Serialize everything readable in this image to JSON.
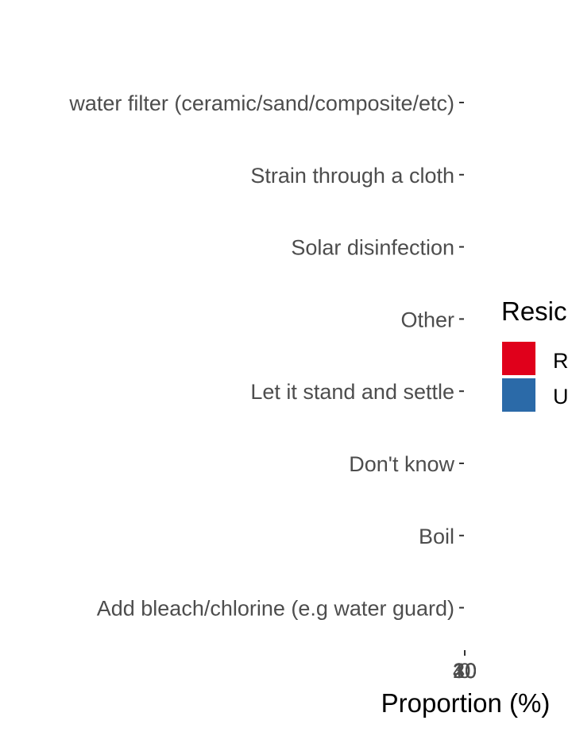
{
  "chart_data": {
    "type": "bar",
    "orientation": "horizontal",
    "categories": [
      "water filter (ceramic/sand/composite/etc)",
      "Strain through a cloth",
      "Solar disinfection",
      "Other",
      "Let it stand and settle",
      "Don't know",
      "Boil",
      "Add bleach/chlorine (e.g water guard)"
    ],
    "series": [
      {
        "name": "R",
        "color": "#e0001b",
        "values": [
          0,
          0,
          0,
          0,
          0,
          0,
          0,
          0
        ]
      },
      {
        "name": "U",
        "color": "#2b6aa8",
        "values": [
          0,
          0,
          0,
          0,
          0,
          0,
          0,
          0
        ]
      }
    ],
    "x_ticks": [
      "40",
      "30",
      "20",
      "10",
      "0"
    ],
    "xlabel": "Proportion (%)",
    "ylabel": "",
    "legend": {
      "title": "Resic",
      "position": "right"
    },
    "grid": false
  }
}
